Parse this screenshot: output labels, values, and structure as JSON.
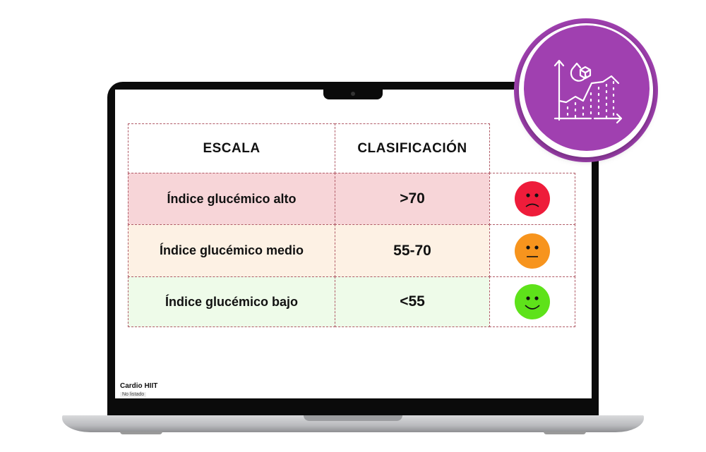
{
  "table": {
    "headers": [
      "ESCALA",
      "CLASIFICACIÓN"
    ],
    "rows": [
      {
        "label": "Índice glucémico alto",
        "value": ">70",
        "face": "sad",
        "face_color": "#ee1c3a",
        "bg": "#f7d5d8"
      },
      {
        "label": "Índice glucémico medio",
        "value": "55-70",
        "face": "neutral",
        "face_color": "#f7941d",
        "bg": "#fdf1e4"
      },
      {
        "label": "Índice glucémico bajo",
        "value": "<55",
        "face": "happy",
        "face_color": "#5ee21a",
        "bg": "#eefbe9"
      }
    ]
  },
  "video": {
    "title": "Cardio HIIT",
    "visibility": "No listado"
  },
  "badge": {
    "icon": "glucose-chart-icon",
    "color": "#a040b0"
  }
}
